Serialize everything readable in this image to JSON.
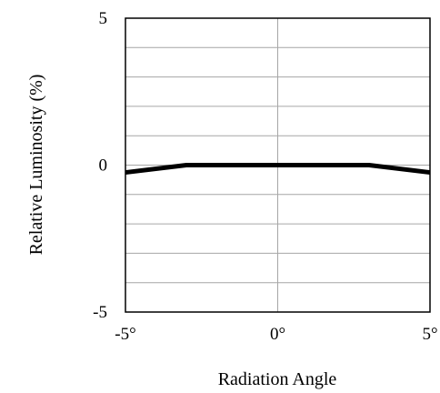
{
  "chart_data": {
    "type": "line",
    "title": "",
    "xlabel": "Radiation Angle",
    "ylabel": "Relative Luminosity (%)",
    "xlim": [
      -5,
      5
    ],
    "ylim": [
      -5,
      5
    ],
    "x_ticks": [
      -5,
      0,
      5
    ],
    "x_tick_labels": [
      "-5°",
      "0°",
      "5°"
    ],
    "y_ticks": [
      5,
      0,
      -5
    ],
    "y_tick_labels": [
      "5",
      "0",
      "-5"
    ],
    "grid": true,
    "series": [
      {
        "x": [
          -5,
          -3,
          0,
          3,
          5
        ],
        "y": [
          -0.25,
          0,
          0,
          0,
          -0.25
        ]
      }
    ],
    "colors": {
      "line": "#000000",
      "grid": "#a6a6a6",
      "axes": "#000000"
    }
  }
}
